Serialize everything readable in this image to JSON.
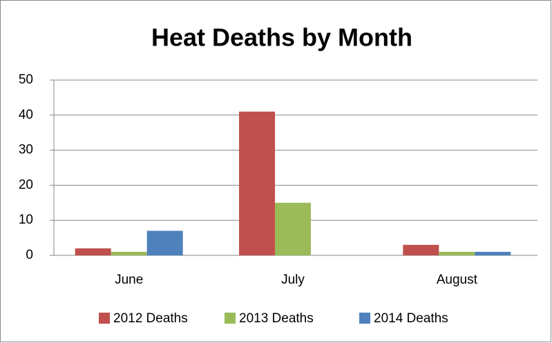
{
  "chart_data": {
    "type": "bar",
    "title": "Heat Deaths by Month",
    "categories": [
      "June",
      "July",
      "August"
    ],
    "series": [
      {
        "name": "2012 Deaths",
        "color": "#c0504d",
        "values": [
          2,
          41,
          3
        ]
      },
      {
        "name": "2013 Deaths",
        "color": "#9bbb59",
        "values": [
          1,
          15,
          1
        ]
      },
      {
        "name": "2014 Deaths",
        "color": "#4f81bd",
        "values": [
          7,
          null,
          1
        ]
      }
    ],
    "ylim": [
      0,
      50
    ],
    "yticks": [
      0,
      10,
      20,
      30,
      40,
      50
    ],
    "grid": true,
    "legend": "bottom"
  }
}
